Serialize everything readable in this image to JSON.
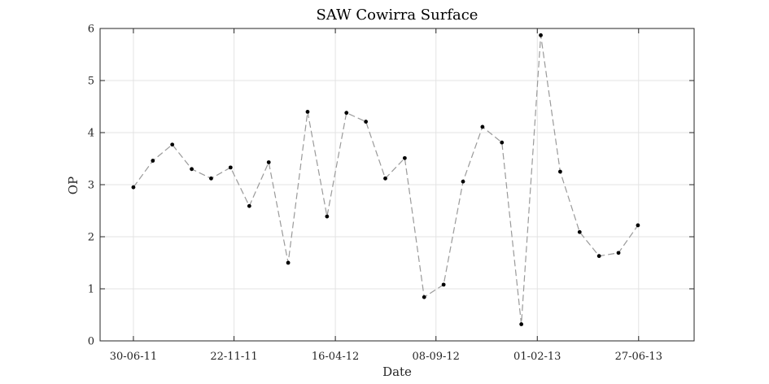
{
  "chart_data": {
    "type": "line",
    "title": "SAW Cowirra Surface",
    "xlabel": "Date",
    "ylabel": "OP",
    "ylim": [
      0,
      6
    ],
    "yticks": [
      0,
      1,
      2,
      3,
      4,
      5,
      6
    ],
    "xlim": [
      "2011-05-13",
      "2013-09-15"
    ],
    "xticks": [
      "30-06-11",
      "22-11-11",
      "16-04-12",
      "08-09-12",
      "01-02-13",
      "27-06-13"
    ],
    "grid": true,
    "line_style": "dashed",
    "line_color": "#9a9a9a",
    "marker_color": "#000000",
    "series": [
      {
        "points": [
          {
            "x": "2011-06-30",
            "y": 2.95
          },
          {
            "x": "2011-07-28",
            "y": 3.46
          },
          {
            "x": "2011-08-25",
            "y": 3.77
          },
          {
            "x": "2011-09-22",
            "y": 3.3
          },
          {
            "x": "2011-10-20",
            "y": 3.12
          },
          {
            "x": "2011-11-17",
            "y": 3.33
          },
          {
            "x": "2011-12-14",
            "y": 2.59
          },
          {
            "x": "2012-01-11",
            "y": 3.43
          },
          {
            "x": "2012-02-08",
            "y": 1.5
          },
          {
            "x": "2012-03-07",
            "y": 4.4
          },
          {
            "x": "2012-04-04",
            "y": 2.39
          },
          {
            "x": "2012-05-02",
            "y": 4.38
          },
          {
            "x": "2012-05-30",
            "y": 4.21
          },
          {
            "x": "2012-06-27",
            "y": 3.12
          },
          {
            "x": "2012-07-25",
            "y": 3.51
          },
          {
            "x": "2012-08-22",
            "y": 0.84
          },
          {
            "x": "2012-09-19",
            "y": 1.08
          },
          {
            "x": "2012-10-17",
            "y": 3.06
          },
          {
            "x": "2012-11-14",
            "y": 4.11
          },
          {
            "x": "2012-12-12",
            "y": 3.81
          },
          {
            "x": "2013-01-09",
            "y": 0.32
          },
          {
            "x": "2013-02-06",
            "y": 5.87
          },
          {
            "x": "2013-03-06",
            "y": 3.25
          },
          {
            "x": "2013-04-03",
            "y": 2.09
          },
          {
            "x": "2013-05-01",
            "y": 1.63
          },
          {
            "x": "2013-05-29",
            "y": 1.69
          },
          {
            "x": "2013-06-26",
            "y": 2.22
          }
        ]
      }
    ]
  }
}
